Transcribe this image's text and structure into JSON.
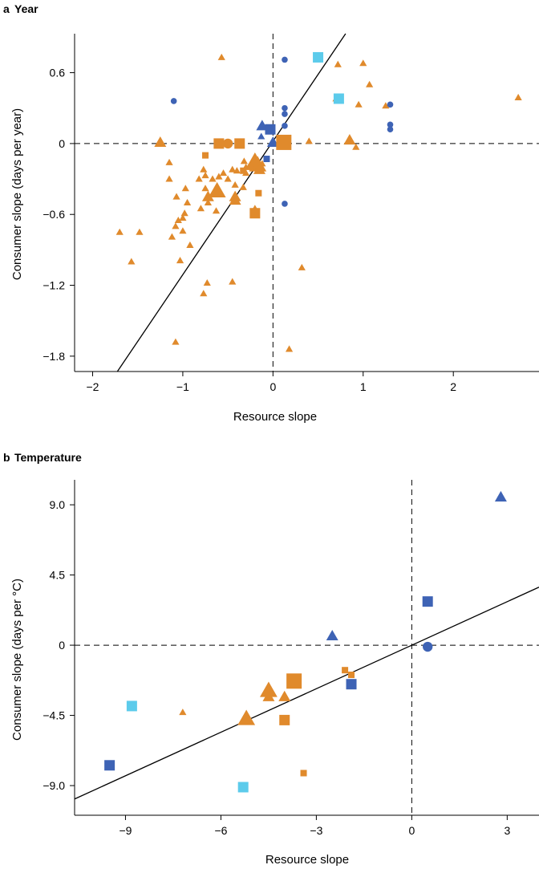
{
  "colors": {
    "orange": "#E08A2C",
    "blue": "#3E63B5",
    "cyan": "#5CCBEB",
    "axis": "#000000"
  },
  "chart_data": [
    {
      "type": "scatter",
      "panel": "a",
      "title": "Year",
      "xlabel": "Resource slope",
      "ylabel": "Consumer slope (days per year)",
      "xlim": [
        -2.2,
        2.95
      ],
      "ylim": [
        -1.93,
        0.93
      ],
      "xticks": [
        -2,
        -1,
        0,
        1,
        2
      ],
      "xtick_labels": [
        "−2",
        "−1",
        "0",
        "1",
        "2"
      ],
      "yticks": [
        0.6,
        0,
        -0.6,
        -1.2,
        -1.8
      ],
      "ytick_labels": [
        "0.6",
        "0",
        "−0.6",
        "−1.2",
        "−1.8"
      ],
      "reference_lines": {
        "x": 0,
        "y": 0,
        "style": "dashed"
      },
      "fit_line": {
        "slope": 1.13,
        "intercept": 0.02
      },
      "points": [
        {
          "x": -0.57,
          "y": 0.73,
          "shape": "triangle",
          "color": "orange",
          "size": "small"
        },
        {
          "x": -1.1,
          "y": 0.36,
          "shape": "circle",
          "color": "blue",
          "size": "small"
        },
        {
          "x": 0.13,
          "y": 0.71,
          "shape": "circle",
          "color": "blue",
          "size": "small"
        },
        {
          "x": 0.5,
          "y": 0.73,
          "shape": "square",
          "color": "cyan",
          "size": "medium"
        },
        {
          "x": 0.72,
          "y": 0.67,
          "shape": "triangle",
          "color": "orange",
          "size": "small"
        },
        {
          "x": 1.0,
          "y": 0.68,
          "shape": "triangle",
          "color": "orange",
          "size": "small"
        },
        {
          "x": 1.07,
          "y": 0.5,
          "shape": "triangle",
          "color": "orange",
          "size": "small"
        },
        {
          "x": 0.7,
          "y": 0.38,
          "shape": "triangle",
          "color": "orange",
          "size": "small"
        },
        {
          "x": 0.73,
          "y": 0.38,
          "shape": "square",
          "color": "cyan",
          "size": "medium"
        },
        {
          "x": 0.95,
          "y": 0.33,
          "shape": "triangle",
          "color": "orange",
          "size": "small"
        },
        {
          "x": 1.25,
          "y": 0.32,
          "shape": "triangle",
          "color": "orange",
          "size": "small"
        },
        {
          "x": 1.3,
          "y": 0.33,
          "shape": "circle",
          "color": "blue",
          "size": "small"
        },
        {
          "x": 1.3,
          "y": 0.16,
          "shape": "circle",
          "color": "blue",
          "size": "small"
        },
        {
          "x": 1.3,
          "y": 0.12,
          "shape": "circle",
          "color": "blue",
          "size": "small"
        },
        {
          "x": 2.72,
          "y": 0.39,
          "shape": "triangle",
          "color": "orange",
          "size": "small"
        },
        {
          "x": 0.13,
          "y": 0.3,
          "shape": "circle",
          "color": "blue",
          "size": "small"
        },
        {
          "x": 0.13,
          "y": 0.25,
          "shape": "circle",
          "color": "blue",
          "size": "small"
        },
        {
          "x": 0.13,
          "y": 0.15,
          "shape": "circle",
          "color": "blue",
          "size": "small"
        },
        {
          "x": 0.85,
          "y": 0.03,
          "shape": "triangle",
          "color": "orange",
          "size": "medium"
        },
        {
          "x": 0.92,
          "y": -0.03,
          "shape": "triangle",
          "color": "orange",
          "size": "small"
        },
        {
          "x": 0.4,
          "y": 0.02,
          "shape": "triangle",
          "color": "orange",
          "size": "small"
        },
        {
          "x": -0.12,
          "y": 0.15,
          "shape": "triangle",
          "color": "blue",
          "size": "medium"
        },
        {
          "x": -0.03,
          "y": 0.12,
          "shape": "square",
          "color": "blue",
          "size": "medium"
        },
        {
          "x": -0.13,
          "y": 0.06,
          "shape": "triangle",
          "color": "blue",
          "size": "small"
        },
        {
          "x": 0.0,
          "y": 0.01,
          "shape": "triangle",
          "color": "blue",
          "size": "medium"
        },
        {
          "x": 0.12,
          "y": 0.01,
          "shape": "square",
          "color": "orange",
          "size": "large"
        },
        {
          "x": -0.07,
          "y": -0.13,
          "shape": "square",
          "color": "blue",
          "size": "small"
        },
        {
          "x": -1.25,
          "y": 0.01,
          "shape": "triangle",
          "color": "orange",
          "size": "medium"
        },
        {
          "x": -0.6,
          "y": 0.0,
          "shape": "square",
          "color": "orange",
          "size": "medium"
        },
        {
          "x": -0.5,
          "y": 0.0,
          "shape": "circle",
          "color": "orange",
          "size": "medium"
        },
        {
          "x": -0.37,
          "y": 0.0,
          "shape": "square",
          "color": "orange",
          "size": "medium"
        },
        {
          "x": -1.15,
          "y": -0.16,
          "shape": "triangle",
          "color": "orange",
          "size": "small"
        },
        {
          "x": -1.15,
          "y": -0.3,
          "shape": "triangle",
          "color": "orange",
          "size": "small"
        },
        {
          "x": -0.97,
          "y": -0.38,
          "shape": "triangle",
          "color": "orange",
          "size": "small"
        },
        {
          "x": -0.75,
          "y": -0.1,
          "shape": "square",
          "color": "orange",
          "size": "small"
        },
        {
          "x": -0.77,
          "y": -0.22,
          "shape": "triangle",
          "color": "orange",
          "size": "small"
        },
        {
          "x": -0.75,
          "y": -0.27,
          "shape": "triangle",
          "color": "orange",
          "size": "small"
        },
        {
          "x": -0.82,
          "y": -0.3,
          "shape": "triangle",
          "color": "orange",
          "size": "small"
        },
        {
          "x": -0.75,
          "y": -0.38,
          "shape": "triangle",
          "color": "orange",
          "size": "small"
        },
        {
          "x": -0.67,
          "y": -0.3,
          "shape": "triangle",
          "color": "orange",
          "size": "small"
        },
        {
          "x": -0.6,
          "y": -0.28,
          "shape": "triangle",
          "color": "orange",
          "size": "small"
        },
        {
          "x": -0.55,
          "y": -0.25,
          "shape": "triangle",
          "color": "orange",
          "size": "small"
        },
        {
          "x": -0.5,
          "y": -0.3,
          "shape": "triangle",
          "color": "orange",
          "size": "small"
        },
        {
          "x": -0.45,
          "y": -0.22,
          "shape": "triangle",
          "color": "orange",
          "size": "small"
        },
        {
          "x": -0.42,
          "y": -0.35,
          "shape": "triangle",
          "color": "orange",
          "size": "small"
        },
        {
          "x": -0.62,
          "y": -0.4,
          "shape": "triangle",
          "color": "orange",
          "size": "large"
        },
        {
          "x": -0.72,
          "y": -0.45,
          "shape": "triangle",
          "color": "orange",
          "size": "medium"
        },
        {
          "x": -0.72,
          "y": -0.5,
          "shape": "triangle",
          "color": "orange",
          "size": "small"
        },
        {
          "x": -0.42,
          "y": -0.45,
          "shape": "triangle",
          "color": "orange",
          "size": "medium"
        },
        {
          "x": -0.42,
          "y": -0.48,
          "shape": "triangle",
          "color": "orange",
          "size": "medium"
        },
        {
          "x": -0.8,
          "y": -0.55,
          "shape": "triangle",
          "color": "orange",
          "size": "small"
        },
        {
          "x": -0.63,
          "y": -0.57,
          "shape": "triangle",
          "color": "orange",
          "size": "small"
        },
        {
          "x": -0.33,
          "y": -0.37,
          "shape": "triangle",
          "color": "orange",
          "size": "small"
        },
        {
          "x": -0.3,
          "y": -0.25,
          "shape": "triangle",
          "color": "orange",
          "size": "small"
        },
        {
          "x": -0.3,
          "y": -0.2,
          "shape": "triangle",
          "color": "orange",
          "size": "small"
        },
        {
          "x": -0.27,
          "y": -0.2,
          "shape": "triangle",
          "color": "orange",
          "size": "small"
        },
        {
          "x": -0.32,
          "y": -0.15,
          "shape": "triangle",
          "color": "orange",
          "size": "small"
        },
        {
          "x": -0.4,
          "y": -0.23,
          "shape": "triangle",
          "color": "orange",
          "size": "small"
        },
        {
          "x": -0.2,
          "y": -0.15,
          "shape": "triangle",
          "color": "orange",
          "size": "large"
        },
        {
          "x": -0.17,
          "y": -0.18,
          "shape": "triangle",
          "color": "orange",
          "size": "large"
        },
        {
          "x": -0.23,
          "y": -0.2,
          "shape": "triangle",
          "color": "orange",
          "size": "small"
        },
        {
          "x": -0.15,
          "y": -0.22,
          "shape": "triangle",
          "color": "orange",
          "size": "medium"
        },
        {
          "x": -0.12,
          "y": -0.17,
          "shape": "triangle",
          "color": "orange",
          "size": "small"
        },
        {
          "x": -0.33,
          "y": -0.23,
          "shape": "square",
          "color": "orange",
          "size": "small"
        },
        {
          "x": -0.16,
          "y": -0.42,
          "shape": "square",
          "color": "orange",
          "size": "small"
        },
        {
          "x": -0.2,
          "y": -0.55,
          "shape": "triangle",
          "color": "orange",
          "size": "small"
        },
        {
          "x": -0.2,
          "y": -0.59,
          "shape": "square",
          "color": "orange",
          "size": "medium"
        },
        {
          "x": 0.13,
          "y": -0.51,
          "shape": "circle",
          "color": "blue",
          "size": "small"
        },
        {
          "x": -1.07,
          "y": -0.45,
          "shape": "triangle",
          "color": "orange",
          "size": "small"
        },
        {
          "x": -0.95,
          "y": -0.5,
          "shape": "triangle",
          "color": "orange",
          "size": "small"
        },
        {
          "x": -0.98,
          "y": -0.59,
          "shape": "triangle",
          "color": "orange",
          "size": "small"
        },
        {
          "x": -1.0,
          "y": -0.63,
          "shape": "triangle",
          "color": "orange",
          "size": "small"
        },
        {
          "x": -1.05,
          "y": -0.65,
          "shape": "triangle",
          "color": "orange",
          "size": "small"
        },
        {
          "x": -1.08,
          "y": -0.7,
          "shape": "triangle",
          "color": "orange",
          "size": "small"
        },
        {
          "x": -1.0,
          "y": -0.74,
          "shape": "triangle",
          "color": "orange",
          "size": "small"
        },
        {
          "x": -1.12,
          "y": -0.79,
          "shape": "triangle",
          "color": "orange",
          "size": "small"
        },
        {
          "x": -0.92,
          "y": -0.86,
          "shape": "triangle",
          "color": "orange",
          "size": "small"
        },
        {
          "x": -1.7,
          "y": -0.75,
          "shape": "triangle",
          "color": "orange",
          "size": "small"
        },
        {
          "x": -1.48,
          "y": -0.75,
          "shape": "triangle",
          "color": "orange",
          "size": "small"
        },
        {
          "x": -1.57,
          "y": -1.0,
          "shape": "triangle",
          "color": "orange",
          "size": "small"
        },
        {
          "x": -1.03,
          "y": -0.99,
          "shape": "triangle",
          "color": "orange",
          "size": "small"
        },
        {
          "x": -0.73,
          "y": -1.18,
          "shape": "triangle",
          "color": "orange",
          "size": "small"
        },
        {
          "x": -0.77,
          "y": -1.27,
          "shape": "triangle",
          "color": "orange",
          "size": "small"
        },
        {
          "x": -0.45,
          "y": -1.17,
          "shape": "triangle",
          "color": "orange",
          "size": "small"
        },
        {
          "x": 0.32,
          "y": -1.05,
          "shape": "triangle",
          "color": "orange",
          "size": "small"
        },
        {
          "x": -1.08,
          "y": -1.68,
          "shape": "triangle",
          "color": "orange",
          "size": "small"
        },
        {
          "x": 0.18,
          "y": -1.74,
          "shape": "triangle",
          "color": "orange",
          "size": "small"
        }
      ]
    },
    {
      "type": "scatter",
      "panel": "b",
      "title": "Temperature",
      "xlabel": "Resource slope",
      "ylabel": "Consumer slope (days per °C)",
      "xlim": [
        -10.6,
        4.0
      ],
      "ylim": [
        -10.9,
        10.6
      ],
      "xticks": [
        -9,
        -6,
        -3,
        0,
        3
      ],
      "xtick_labels": [
        "−9",
        "−6",
        "−3",
        "0",
        "3"
      ],
      "yticks": [
        9.0,
        4.5,
        0,
        -4.5,
        -9.0
      ],
      "ytick_labels": [
        "9.0",
        "4.5",
        "0",
        "−4.5",
        "−9.0"
      ],
      "reference_lines": {
        "x": 0,
        "y": 0,
        "style": "dashed"
      },
      "fit_line": {
        "slope": 0.93,
        "intercept": 0.0
      },
      "points": [
        {
          "x": 2.8,
          "y": 9.5,
          "shape": "triangle",
          "color": "blue",
          "size": "medium"
        },
        {
          "x": 0.5,
          "y": 2.8,
          "shape": "square",
          "color": "blue",
          "size": "medium"
        },
        {
          "x": 0.5,
          "y": -0.1,
          "shape": "circle",
          "color": "blue",
          "size": "medium"
        },
        {
          "x": -2.5,
          "y": 0.6,
          "shape": "triangle",
          "color": "blue",
          "size": "medium"
        },
        {
          "x": -2.1,
          "y": -1.6,
          "shape": "square",
          "color": "orange",
          "size": "small"
        },
        {
          "x": -1.9,
          "y": -1.9,
          "shape": "square",
          "color": "orange",
          "size": "small"
        },
        {
          "x": -1.9,
          "y": -2.5,
          "shape": "square",
          "color": "blue",
          "size": "medium"
        },
        {
          "x": -3.7,
          "y": -2.3,
          "shape": "square",
          "color": "orange",
          "size": "large"
        },
        {
          "x": -4.5,
          "y": -2.9,
          "shape": "triangle",
          "color": "orange",
          "size": "large"
        },
        {
          "x": -4.5,
          "y": -3.3,
          "shape": "triangle",
          "color": "orange",
          "size": "medium"
        },
        {
          "x": -4.0,
          "y": -3.3,
          "shape": "triangle",
          "color": "orange",
          "size": "medium"
        },
        {
          "x": -4.0,
          "y": -4.8,
          "shape": "square",
          "color": "orange",
          "size": "medium"
        },
        {
          "x": -5.2,
          "y": -4.7,
          "shape": "triangle",
          "color": "orange",
          "size": "large"
        },
        {
          "x": -7.2,
          "y": -4.3,
          "shape": "triangle",
          "color": "orange",
          "size": "small"
        },
        {
          "x": -8.8,
          "y": -3.9,
          "shape": "square",
          "color": "cyan",
          "size": "medium"
        },
        {
          "x": -9.5,
          "y": -7.7,
          "shape": "square",
          "color": "blue",
          "size": "medium"
        },
        {
          "x": -3.4,
          "y": -8.2,
          "shape": "square",
          "color": "orange",
          "size": "small"
        },
        {
          "x": -5.3,
          "y": -9.1,
          "shape": "square",
          "color": "cyan",
          "size": "medium"
        }
      ]
    }
  ]
}
